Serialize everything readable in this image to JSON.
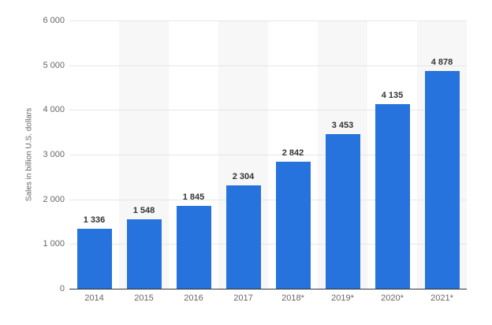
{
  "chart_data": {
    "type": "bar",
    "title": "",
    "xlabel": "",
    "ylabel": "Sales in billion U.S. dollars",
    "ylim": [
      0,
      6000
    ],
    "yticks": [
      0,
      1000,
      2000,
      3000,
      4000,
      5000,
      6000
    ],
    "ytick_labels": [
      "0",
      "1 000",
      "2 000",
      "3 000",
      "4 000",
      "5 000",
      "6 000"
    ],
    "categories": [
      "2014",
      "2015",
      "2016",
      "2017",
      "2018*",
      "2019*",
      "2020*",
      "2021*"
    ],
    "values": [
      1336,
      1548,
      1845,
      2304,
      2842,
      3453,
      4135,
      4878
    ],
    "value_labels": [
      "1 336",
      "1 548",
      "1 845",
      "2 304",
      "2 842",
      "3 453",
      "4 135",
      "4 878"
    ],
    "grid": true,
    "legend": null,
    "colors": {
      "bar": "#2673dd",
      "band": "#f7f7f7",
      "grid": "#e6e6e6"
    }
  }
}
